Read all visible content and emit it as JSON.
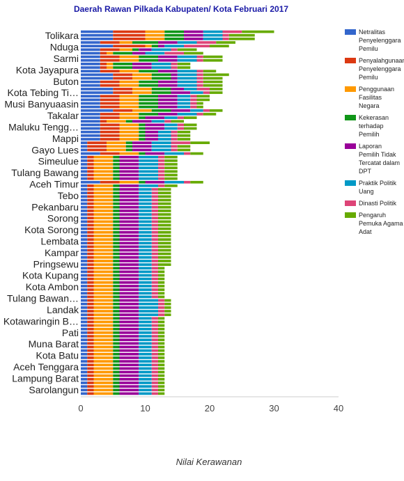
{
  "chart_data": {
    "type": "bar",
    "orientation": "horizontal",
    "stacked": true,
    "title": "Daerah Rawan Pilkada Kabupaten/ Kota Februari 2017",
    "xlabel": "Nilai Kerawanan",
    "ylabel": "",
    "xlim": [
      0,
      40
    ],
    "xticks": [
      0,
      10,
      20,
      30,
      40
    ],
    "grid": false,
    "legend_position": "right",
    "categories_labeled": [
      "Tolikara",
      "Nduga",
      "Sarmi",
      "Kota Jayapura",
      "Buton",
      "Kota Tebing Ti…",
      "Musi Banyuaasin",
      "Takalar",
      "Maluku Tengg…",
      "Mappi",
      "Gayo Lues",
      "Simeulue",
      "Tulang Bawang",
      "Aceh Timur",
      "Tebo",
      "Pekanbaru",
      "Sorong",
      "Kota Sorong",
      "Lembata",
      "Kampar",
      "Pringsewu",
      "Kota Kupang",
      "Kota Ambon",
      "Tulang Bawan…",
      "Landak",
      "Kotawaringin B…",
      "Pati",
      "Muna Barat",
      "Kota Batu",
      "Aceh Tenggara",
      "Lampung Barat",
      "Sarolangun"
    ],
    "series": [
      {
        "name": "Netralitas Penyelenggara Pemilu",
        "color": "#3366cc"
      },
      {
        "name": "Penyalahgunaan Penyelenggara Pemilu",
        "color": "#dc3912"
      },
      {
        "name": "Penggunaan Fasilitas Negara",
        "color": "#ff9900"
      },
      {
        "name": "Kekerasan terhadap Pemilih",
        "color": "#109618"
      },
      {
        "name": "Laporan Pemilih Tidak Tercatat dalam DPT",
        "color": "#990099"
      },
      {
        "name": "Praktik Politik Uang",
        "color": "#0099c6"
      },
      {
        "name": "Dinasti Politik",
        "color": "#dd4477"
      },
      {
        "name": "Pengaruh Pemuka Agama Adat",
        "color": "#66aa00"
      }
    ],
    "rows": [
      [
        5,
        5,
        3,
        3,
        3,
        3,
        3,
        5
      ],
      [
        5,
        5,
        3,
        3,
        3,
        3,
        1,
        4
      ],
      [
        5,
        5,
        3,
        3,
        3,
        3,
        1,
        4
      ],
      [
        3,
        3,
        2,
        4,
        3,
        3,
        3,
        3
      ],
      [
        5,
        5,
        1,
        1,
        1,
        3,
        4,
        3
      ],
      [
        3,
        3,
        2,
        1,
        2,
        3,
        1,
        3
      ],
      [
        3,
        1,
        1,
        3,
        2,
        3,
        3,
        3
      ],
      [
        3,
        3,
        3,
        3,
        3,
        3,
        1,
        3
      ],
      [
        3,
        3,
        3,
        3,
        3,
        3,
        1,
        3
      ],
      [
        3,
        1,
        1,
        3,
        3,
        3,
        1,
        2
      ],
      [
        3,
        1,
        1,
        3,
        3,
        3,
        1,
        2
      ],
      [
        3,
        3,
        3,
        3,
        3,
        3,
        1,
        2
      ],
      [
        5,
        3,
        3,
        3,
        1,
        3,
        1,
        4
      ],
      [
        5,
        3,
        3,
        3,
        1,
        3,
        1,
        3
      ],
      [
        3,
        3,
        3,
        3,
        3,
        3,
        1,
        3
      ],
      [
        3,
        3,
        3,
        3,
        3,
        3,
        1,
        3
      ],
      [
        5,
        3,
        3,
        3,
        2,
        2,
        2,
        2
      ],
      [
        5,
        3,
        3,
        3,
        3,
        2,
        1,
        2
      ],
      [
        3,
        3,
        3,
        3,
        3,
        2,
        1,
        2
      ],
      [
        3,
        3,
        3,
        3,
        3,
        2,
        1,
        2
      ],
      [
        3,
        3,
        3,
        3,
        3,
        2,
        1,
        1
      ],
      [
        3,
        3,
        3,
        3,
        3,
        2,
        1,
        1
      ],
      [
        5,
        3,
        3,
        3,
        3,
        2,
        1,
        2
      ],
      [
        3,
        3,
        3,
        3,
        3,
        3,
        1,
        2
      ],
      [
        3,
        3,
        3,
        1,
        3,
        2,
        1,
        2
      ],
      [
        3,
        1,
        3,
        1,
        3,
        2,
        1,
        2
      ],
      [
        3,
        3,
        3,
        1,
        3,
        2,
        1,
        2
      ],
      [
        3,
        3,
        3,
        1,
        3,
        2,
        1,
        2
      ],
      [
        3,
        3,
        3,
        1,
        2,
        2,
        1,
        2
      ],
      [
        3,
        3,
        3,
        1,
        2,
        2,
        1,
        2
      ],
      [
        3,
        3,
        3,
        1,
        2,
        2,
        1,
        2
      ],
      [
        1,
        3,
        3,
        1,
        3,
        3,
        3,
        3
      ],
      [
        1,
        3,
        3,
        1,
        3,
        3,
        1,
        2
      ],
      [
        1,
        3,
        3,
        1,
        3,
        3,
        1,
        2
      ],
      [
        3,
        3,
        3,
        1,
        3,
        3,
        1,
        2
      ],
      [
        1,
        1,
        3,
        1,
        3,
        3,
        1,
        2
      ],
      [
        1,
        1,
        3,
        1,
        3,
        3,
        1,
        2
      ],
      [
        1,
        1,
        3,
        1,
        3,
        3,
        1,
        2
      ],
      [
        1,
        1,
        3,
        1,
        3,
        3,
        1,
        2
      ],
      [
        1,
        1,
        3,
        1,
        3,
        3,
        1,
        2
      ],
      [
        1,
        1,
        3,
        1,
        3,
        3,
        1,
        2
      ],
      [
        1,
        1,
        3,
        1,
        3,
        3,
        1,
        2
      ],
      [
        3,
        3,
        3,
        1,
        3,
        3,
        1,
        2
      ],
      [
        1,
        1,
        3,
        1,
        3,
        3,
        1,
        2
      ],
      [
        1,
        1,
        3,
        1,
        3,
        2,
        1,
        2
      ],
      [
        1,
        1,
        3,
        1,
        3,
        2,
        1,
        2
      ],
      [
        1,
        1,
        3,
        1,
        3,
        2,
        1,
        2
      ],
      [
        1,
        1,
        3,
        1,
        3,
        2,
        1,
        2
      ],
      [
        1,
        1,
        3,
        1,
        3,
        2,
        1,
        2
      ],
      [
        1,
        1,
        3,
        1,
        3,
        2,
        1,
        2
      ],
      [
        1,
        1,
        3,
        1,
        3,
        2,
        1,
        2
      ],
      [
        1,
        1,
        3,
        1,
        3,
        2,
        1,
        2
      ],
      [
        1,
        1,
        3,
        1,
        3,
        2,
        1,
        2
      ],
      [
        1,
        1,
        3,
        1,
        3,
        2,
        1,
        2
      ],
      [
        1,
        1,
        3,
        1,
        3,
        2,
        1,
        2
      ],
      [
        1,
        1,
        3,
        1,
        3,
        2,
        1,
        2
      ],
      [
        1,
        1,
        3,
        1,
        3,
        2,
        1,
        2
      ],
      [
        1,
        1,
        3,
        1,
        3,
        2,
        1,
        2
      ],
      [
        1,
        1,
        3,
        1,
        3,
        2,
        1,
        2
      ],
      [
        1,
        1,
        3,
        1,
        3,
        2,
        1,
        2
      ],
      [
        1,
        1,
        3,
        1,
        3,
        2,
        1,
        2
      ],
      [
        1,
        1,
        3,
        1,
        3,
        2,
        1,
        2
      ],
      [
        1,
        1,
        3,
        1,
        3,
        2,
        1,
        2
      ],
      [
        1,
        1,
        3,
        1,
        3,
        2,
        1,
        2
      ],
      [
        1,
        1,
        3,
        1,
        3,
        2,
        1,
        2
      ],
      [
        1,
        1,
        3,
        1,
        3,
        2,
        1,
        2
      ],
      [
        1,
        1,
        3,
        1,
        3,
        2,
        1,
        1
      ],
      [
        1,
        1,
        3,
        1,
        3,
        2,
        1,
        1
      ],
      [
        1,
        1,
        3,
        1,
        3,
        2,
        1,
        1
      ],
      [
        1,
        1,
        3,
        1,
        3,
        2,
        1,
        1
      ],
      [
        1,
        1,
        3,
        1,
        3,
        2,
        1,
        1
      ],
      [
        1,
        1,
        3,
        1,
        3,
        2,
        1,
        1
      ],
      [
        1,
        1,
        3,
        1,
        3,
        2,
        1,
        1
      ],
      [
        1,
        1,
        3,
        1,
        3,
        2,
        1,
        1
      ],
      [
        1,
        1,
        3,
        1,
        3,
        2,
        1,
        1
      ],
      [
        1,
        1,
        3,
        1,
        3,
        3,
        1,
        1
      ],
      [
        1,
        1,
        3,
        1,
        3,
        3,
        1,
        1
      ],
      [
        1,
        1,
        3,
        1,
        3,
        3,
        1,
        1
      ],
      [
        1,
        1,
        3,
        1,
        3,
        3,
        1,
        1
      ],
      [
        1,
        1,
        3,
        1,
        3,
        3,
        1,
        1
      ],
      [
        1,
        1,
        3,
        1,
        3,
        2,
        1,
        1
      ],
      [
        1,
        1,
        3,
        1,
        3,
        2,
        1,
        1
      ],
      [
        1,
        1,
        3,
        1,
        3,
        2,
        1,
        1
      ],
      [
        1,
        1,
        3,
        1,
        3,
        2,
        1,
        1
      ],
      [
        1,
        1,
        3,
        1,
        3,
        2,
        1,
        1
      ],
      [
        1,
        1,
        3,
        1,
        3,
        2,
        1,
        1
      ],
      [
        1,
        1,
        3,
        1,
        3,
        2,
        1,
        1
      ],
      [
        1,
        1,
        3,
        1,
        3,
        2,
        1,
        1
      ],
      [
        1,
        1,
        3,
        1,
        3,
        2,
        1,
        1
      ],
      [
        1,
        1,
        3,
        1,
        3,
        2,
        1,
        1
      ],
      [
        1,
        1,
        3,
        1,
        3,
        2,
        1,
        1
      ],
      [
        1,
        1,
        3,
        1,
        3,
        2,
        1,
        1
      ],
      [
        1,
        1,
        3,
        1,
        3,
        2,
        1,
        1
      ],
      [
        1,
        1,
        3,
        1,
        3,
        2,
        1,
        1
      ],
      [
        1,
        1,
        3,
        1,
        3,
        2,
        1,
        1
      ],
      [
        1,
        1,
        3,
        1,
        3,
        2,
        1,
        1
      ],
      [
        1,
        1,
        3,
        1,
        3,
        2,
        1,
        1
      ],
      [
        1,
        1,
        3,
        1,
        3,
        2,
        1,
        1
      ],
      [
        1,
        1,
        3,
        1,
        3,
        2,
        1,
        1
      ],
      [
        1,
        1,
        3,
        1,
        3,
        2,
        1,
        1
      ],
      [
        1,
        1,
        3,
        1,
        3,
        2,
        1,
        1
      ],
      [
        1,
        1,
        3,
        1,
        3,
        2,
        1,
        1
      ]
    ]
  }
}
